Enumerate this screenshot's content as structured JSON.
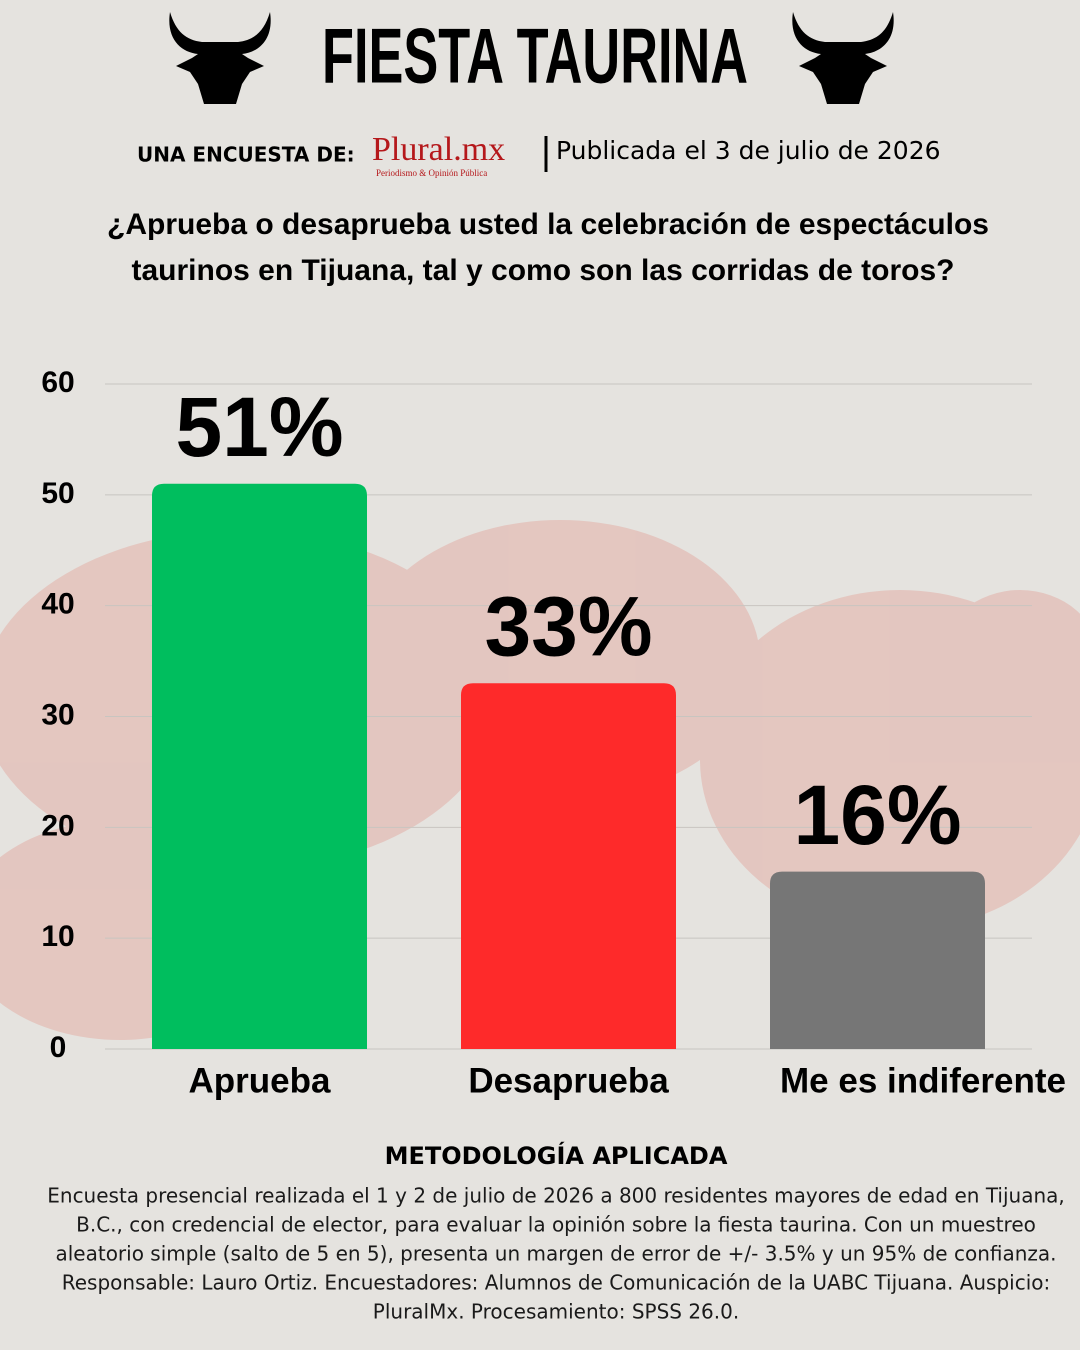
{
  "header": {
    "title": "FIESTA TAURINA",
    "survey_by": "UNA ENCUESTA DE:",
    "brand": "Plural.mx",
    "brand_tagline": "Periodismo & Opinión Pública",
    "published": "Publicada el 3 de julio de 2026"
  },
  "question": [
    "¿Aprueba o desaprueba usted la celebración de espectáculos",
    "taurinos en Tijuana, tal y como son las corridas de toros?"
  ],
  "chart_data": {
    "type": "bar",
    "categories": [
      "Aprueba",
      "Desaprueba",
      "Me es indiferente"
    ],
    "values": [
      51,
      33,
      16
    ],
    "value_labels": [
      "51%",
      "33%",
      "16%"
    ],
    "colors": [
      "#00be5e",
      "#fe2a2a",
      "#767676"
    ],
    "ylim": [
      0,
      60
    ],
    "yticks": [
      0,
      10,
      20,
      30,
      40,
      50,
      60
    ],
    "grid": true
  },
  "methodology": {
    "title": "METODOLOGÍA APLICADA",
    "lines": [
      "Encuesta presencial realizada el 1 y 2 de julio de 2026 a 800 residentes mayores de edad en Tijuana,",
      "B.C., con credencial de elector, para evaluar la opinión sobre la fiesta taurina. Con un muestreo",
      "aleatorio simple (salto de 5 en 5), presenta un margen de error de +/- 3.5% y un 95% de confianza.",
      "Responsable: Lauro Ortiz. Encuestadores: Alumnos de Comunicación de la UABC Tijuana. Auspicio:",
      "PluralMx. Procesamiento: SPSS 26.0."
    ]
  }
}
